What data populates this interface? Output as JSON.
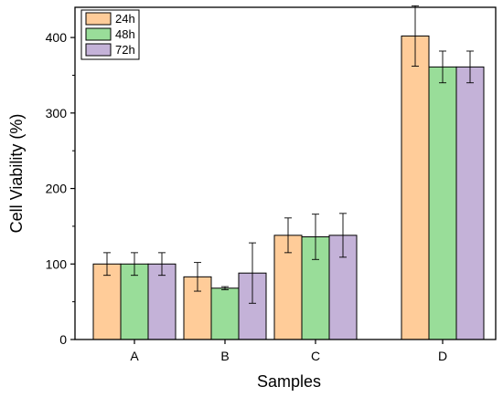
{
  "chart_data": {
    "type": "bar",
    "title": "",
    "xlabel": "Samples",
    "ylabel": "Cell Viability (%)",
    "ylim": [
      0,
      440
    ],
    "yticks": [
      0,
      100,
      200,
      300,
      400
    ],
    "categories": [
      "A",
      "B",
      "C",
      "D"
    ],
    "series": [
      {
        "name": "24h",
        "color": "#FFCC99",
        "values": [
          100,
          83,
          138,
          402
        ],
        "errors": [
          15,
          19,
          23,
          40
        ]
      },
      {
        "name": "48h",
        "color": "#99DD99",
        "values": [
          100,
          68,
          136,
          361
        ],
        "errors": [
          15,
          2,
          30,
          21
        ]
      },
      {
        "name": "72h",
        "color": "#C4B2D8",
        "values": [
          100,
          88,
          138,
          361
        ],
        "errors": [
          15,
          40,
          29,
          21
        ]
      }
    ],
    "legend_position": "top-left",
    "grid": false,
    "error_bars": true
  }
}
